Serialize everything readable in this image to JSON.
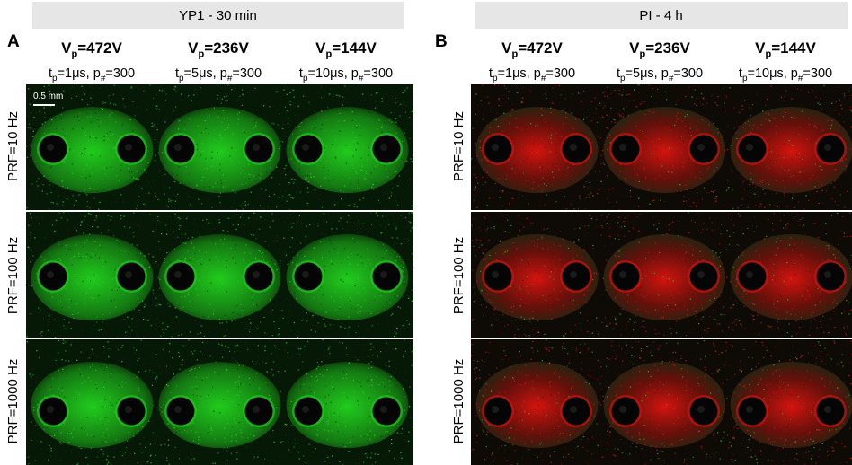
{
  "panels": [
    {
      "letter": "A",
      "banner": "YP1 - 30 min",
      "stain": "green",
      "columns": [
        {
          "v_main": "V",
          "v_sub": "p",
          "v_value": "=472V",
          "t_main": "t",
          "t_sub": "p",
          "t_mid": "=1μs, p",
          "p_sub": "#",
          "t_end": "=300"
        },
        {
          "v_main": "V",
          "v_sub": "p",
          "v_value": "=236V",
          "t_main": "t",
          "t_sub": "p",
          "t_mid": "=5μs, p",
          "p_sub": "#",
          "t_end": "=300"
        },
        {
          "v_main": "V",
          "v_sub": "p",
          "v_value": "=144V",
          "t_main": "t",
          "t_sub": "p",
          "t_mid": "=10μs, p",
          "p_sub": "#",
          "t_end": "=300"
        }
      ],
      "rows": [
        "PRF=10 Hz",
        "PRF=100 Hz",
        "PRF=1000 Hz"
      ],
      "scale_bar": "0.5 mm"
    },
    {
      "letter": "B",
      "banner": "PI - 4 h",
      "stain": "red",
      "columns": [
        {
          "v_main": "V",
          "v_sub": "p",
          "v_value": "=472V",
          "t_main": "t",
          "t_sub": "p",
          "t_mid": "=1μs, p",
          "p_sub": "#",
          "t_end": "=300"
        },
        {
          "v_main": "V",
          "v_sub": "p",
          "v_value": "=236V",
          "t_main": "t",
          "t_sub": "p",
          "t_mid": "=5μs, p",
          "p_sub": "#",
          "t_end": "=300"
        },
        {
          "v_main": "V",
          "v_sub": "p",
          "v_value": "=144V",
          "t_main": "t",
          "t_sub": "p",
          "t_mid": "=10μs, p",
          "p_sub": "#",
          "t_end": "=300"
        }
      ],
      "rows": [
        "PRF=10 Hz",
        "PRF=100 Hz",
        "PRF=1000 Hz"
      ]
    }
  ],
  "colors": {
    "green_stain": "#22d41e",
    "red_stain": "#e0140f",
    "background_green": "#0a2a08",
    "electrode": "#050505",
    "banner": "#e6e6e6"
  }
}
